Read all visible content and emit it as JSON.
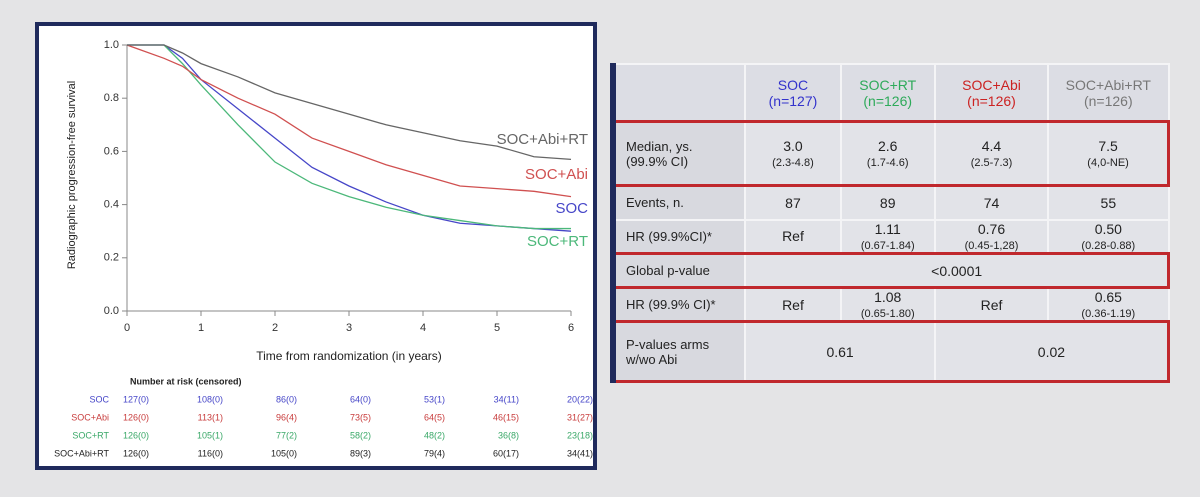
{
  "chart_data": {
    "type": "line",
    "xlabel": "Time from randomization (in years)",
    "ylabel": "Radiographic progression-free survival",
    "x": [
      0,
      0.5,
      0.75,
      1,
      1.5,
      2,
      2.5,
      3,
      3.5,
      4,
      4.5,
      5,
      5.5,
      6
    ],
    "series": [
      {
        "name": "SOC",
        "color": "#4646c8",
        "values": [
          1,
          1,
          0.95,
          0.87,
          0.76,
          0.65,
          0.54,
          0.47,
          0.41,
          0.36,
          0.33,
          0.32,
          0.31,
          0.3
        ]
      },
      {
        "name": "SOC+RT",
        "color": "#4cb87a",
        "values": [
          1,
          1,
          0.93,
          0.85,
          0.7,
          0.56,
          0.48,
          0.43,
          0.39,
          0.36,
          0.34,
          0.32,
          0.31,
          0.31
        ]
      },
      {
        "name": "SOC+Abi",
        "color": "#d05050",
        "values": [
          1,
          0.95,
          0.92,
          0.87,
          0.8,
          0.74,
          0.65,
          0.6,
          0.55,
          0.51,
          0.47,
          0.46,
          0.45,
          0.43
        ]
      },
      {
        "name": "SOC+Abi+RT",
        "color": "#666666",
        "values": [
          1,
          1,
          0.97,
          0.93,
          0.88,
          0.82,
          0.78,
          0.74,
          0.7,
          0.67,
          0.64,
          0.62,
          0.58,
          0.57
        ]
      }
    ],
    "xlim": [
      0,
      6
    ],
    "xticks": [
      0,
      1,
      2,
      3,
      4,
      5,
      6
    ],
    "ylim": [
      0,
      1
    ],
    "yticks": [
      {
        "value": 0,
        "label": "0.0"
      },
      0.2,
      0.4,
      0.6,
      0.8,
      {
        "value": 1,
        "label": "1.0"
      }
    ]
  },
  "risk_table": {
    "title": "Number at risk (censored)",
    "rows": [
      {
        "label": "SOC",
        "color": "#4646c8",
        "cells": [
          "127(0)",
          "108(0)",
          "86(0)",
          "64(0)",
          "53(1)",
          "34(11)",
          "20(22)"
        ]
      },
      {
        "label": "SOC+Abi",
        "color": "#c83c3c",
        "cells": [
          "126(0)",
          "113(1)",
          "96(4)",
          "73(5)",
          "64(5)",
          "46(15)",
          "31(27)"
        ]
      },
      {
        "label": "SOC+RT",
        "color": "#3aa868",
        "cells": [
          "126(0)",
          "105(1)",
          "77(2)",
          "58(2)",
          "48(2)",
          "36(8)",
          "23(18)"
        ]
      },
      {
        "label": "SOC+Abi+RT",
        "color": "#222222",
        "cells": [
          "126(0)",
          "116(0)",
          "105(0)",
          "89(3)",
          "79(4)",
          "60(17)",
          "34(41)"
        ]
      }
    ]
  },
  "table": {
    "header": [
      {
        "name": "SOC",
        "n": "(n=127)",
        "color": "#3333cc"
      },
      {
        "name": "SOC+RT",
        "n": "(n=126)",
        "color": "#2eaa5a"
      },
      {
        "name": "SOC+Abi",
        "n": "(n=126)",
        "color": "#cc2222"
      },
      {
        "name": "SOC+Abi+RT",
        "n": "(n=126)",
        "color": "#777777"
      }
    ],
    "rows": [
      {
        "label": [
          "Median, ys.",
          "(99.9% CI)"
        ],
        "highlighted": true,
        "cells": [
          {
            "main": "3.0",
            "sub": "(2.3-4.8)"
          },
          {
            "main": "2.6",
            "sub": "(1.7-4.6)"
          },
          {
            "main": "4.4",
            "sub": "(2.5-7.3)"
          },
          {
            "main": "7.5",
            "sub": "(4,0-NE)"
          }
        ]
      },
      {
        "label": [
          "Events, n."
        ],
        "highlighted": false,
        "cells": [
          {
            "main": "87"
          },
          {
            "main": "89"
          },
          {
            "main": "74"
          },
          {
            "main": "55"
          }
        ]
      },
      {
        "label": [
          "HR (99.9%CI)*"
        ],
        "highlighted": false,
        "cells": [
          {
            "main": "Ref"
          },
          {
            "main": "1.11",
            "sub": "(0.67-1.84)"
          },
          {
            "main": "0.76",
            "sub": "(0.45-1,28)"
          },
          {
            "main": "0.50",
            "sub": "(0.28-0.88)"
          }
        ]
      },
      {
        "label": [
          "Global p-value"
        ],
        "highlighted": true,
        "cells": [
          {
            "main": "<0.0001"
          }
        ]
      },
      {
        "label": [
          "HR (99.9% CI)*"
        ],
        "highlighted": false,
        "cells": [
          {
            "main": "Ref"
          },
          {
            "main": "1.08",
            "sub": "(0.65-1.80)"
          },
          {
            "main": "Ref"
          },
          {
            "main": "0.65",
            "sub": "(0.36-1.19)"
          }
        ]
      },
      {
        "label": [
          "P-values arms",
          "w/wo Abi"
        ],
        "highlighted": true,
        "cells": [
          {
            "main": "0.61"
          },
          {
            "main": "0.02"
          }
        ]
      }
    ]
  }
}
